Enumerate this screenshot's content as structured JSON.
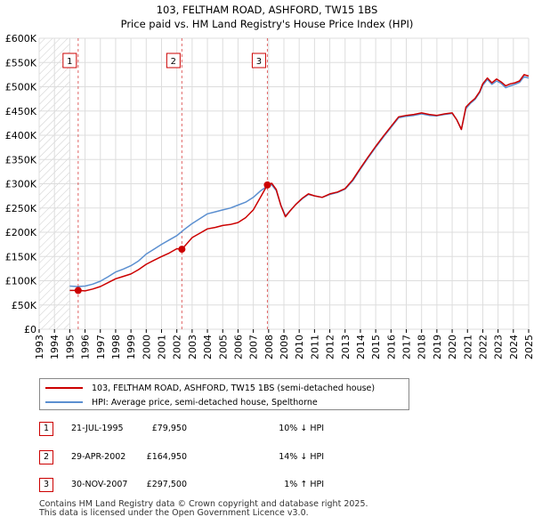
{
  "chart_data": {
    "type": "line",
    "title": "103, FELTHAM ROAD, ASHFORD, TW15 1BS",
    "subtitle": "Price paid vs. HM Land Registry's House Price Index (HPI)",
    "xlabel": "",
    "ylabel": "",
    "xlim": [
      1993,
      2025
    ],
    "ylim": [
      0,
      600000
    ],
    "x_ticks": [
      "1993",
      "1994",
      "1995",
      "1996",
      "1997",
      "1998",
      "1999",
      "2000",
      "2001",
      "2002",
      "2003",
      "2004",
      "2005",
      "2006",
      "2007",
      "2008",
      "2009",
      "2010",
      "2011",
      "2012",
      "2013",
      "2014",
      "2015",
      "2016",
      "2017",
      "2018",
      "2019",
      "2020",
      "2021",
      "2022",
      "2023",
      "2024",
      "2025"
    ],
    "y_ticks": [
      {
        "value": 0,
        "label": "£0"
      },
      {
        "value": 50000,
        "label": "£50K"
      },
      {
        "value": 100000,
        "label": "£100K"
      },
      {
        "value": 150000,
        "label": "£150K"
      },
      {
        "value": 200000,
        "label": "£200K"
      },
      {
        "value": 250000,
        "label": "£250K"
      },
      {
        "value": 300000,
        "label": "£300K"
      },
      {
        "value": 350000,
        "label": "£350K"
      },
      {
        "value": 400000,
        "label": "£400K"
      },
      {
        "value": 450000,
        "label": "£450K"
      },
      {
        "value": 500000,
        "label": "£500K"
      },
      {
        "value": 550000,
        "label": "£550K"
      },
      {
        "value": 600000,
        "label": "£600K"
      }
    ],
    "hatched_until": 1995.0,
    "series": [
      {
        "name": "103, FELTHAM ROAD, ASHFORD, TW15 1BS (semi-detached house)",
        "color": "#cc0000",
        "x": [
          1995.0,
          1995.55,
          1996.0,
          1996.5,
          1997.0,
          1997.5,
          1998.0,
          1998.5,
          1999.0,
          1999.5,
          2000.0,
          2000.5,
          2001.0,
          2001.5,
          2002.0,
          2002.33,
          2002.7,
          2003.0,
          2003.5,
          2004.0,
          2004.5,
          2005.0,
          2005.5,
          2006.0,
          2006.5,
          2007.0,
          2007.5,
          2007.92,
          2008.2,
          2008.5,
          2008.8,
          2009.1,
          2009.4,
          2009.8,
          2010.2,
          2010.6,
          2011.0,
          2011.5,
          2012.0,
          2012.5,
          2013.0,
          2013.5,
          2014.0,
          2014.5,
          2015.0,
          2015.5,
          2016.0,
          2016.5,
          2017.0,
          2017.5,
          2018.0,
          2018.5,
          2019.0,
          2019.5,
          2020.0,
          2020.3,
          2020.6,
          2020.9,
          2021.2,
          2021.5,
          2021.8,
          2022.0,
          2022.3,
          2022.6,
          2022.9,
          2023.2,
          2023.5,
          2023.8,
          2024.1,
          2024.4,
          2024.7,
          2025.0
        ],
        "values": [
          80000,
          79950,
          79000,
          83000,
          88000,
          96000,
          104000,
          109000,
          114000,
          123000,
          134000,
          142000,
          150000,
          157000,
          166000,
          164950,
          178000,
          189000,
          198000,
          207000,
          210000,
          214000,
          216000,
          220000,
          230000,
          246000,
          274000,
          297500,
          301000,
          288000,
          255000,
          232000,
          244000,
          258000,
          270000,
          279000,
          275000,
          272000,
          279000,
          283000,
          290000,
          308000,
          332000,
          355000,
          377000,
          398000,
          418000,
          438000,
          441000,
          443000,
          446000,
          443000,
          441000,
          444000,
          446000,
          432000,
          412000,
          458000,
          468000,
          476000,
          490000,
          506000,
          518000,
          508000,
          516000,
          510000,
          502000,
          506000,
          508000,
          512000,
          525000,
          522000
        ]
      },
      {
        "name": "HPI: Average price, semi-detached house, Spelthorne",
        "color": "#5b8fd0",
        "x": [
          1995.0,
          1995.5,
          1996.0,
          1996.5,
          1997.0,
          1997.5,
          1998.0,
          1998.5,
          1999.0,
          1999.5,
          2000.0,
          2000.5,
          2001.0,
          2001.5,
          2002.0,
          2002.5,
          2003.0,
          2003.5,
          2004.0,
          2004.5,
          2005.0,
          2005.5,
          2006.0,
          2006.5,
          2007.0,
          2007.5,
          2007.92,
          2008.2,
          2008.5,
          2008.8,
          2009.1,
          2009.4,
          2009.8,
          2010.2,
          2010.6,
          2011.0,
          2011.5,
          2012.0,
          2012.5,
          2013.0,
          2013.5,
          2014.0,
          2014.5,
          2015.0,
          2015.5,
          2016.0,
          2016.5,
          2017.0,
          2017.5,
          2018.0,
          2018.5,
          2019.0,
          2019.5,
          2020.0,
          2020.3,
          2020.6,
          2020.9,
          2021.2,
          2021.5,
          2021.8,
          2022.0,
          2022.3,
          2022.6,
          2022.9,
          2023.2,
          2023.5,
          2023.8,
          2024.1,
          2024.4,
          2024.7,
          2025.0
        ],
        "values": [
          89000,
          88000,
          89000,
          93000,
          99000,
          108000,
          118000,
          124000,
          131000,
          141000,
          155000,
          165000,
          175000,
          184000,
          193000,
          206000,
          218000,
          228000,
          238000,
          242000,
          246000,
          250000,
          256000,
          262000,
          272000,
          286000,
          295000,
          298000,
          286000,
          256000,
          234000,
          244000,
          258000,
          269000,
          278000,
          275000,
          272000,
          278000,
          282000,
          289000,
          306000,
          330000,
          353000,
          375000,
          396000,
          416000,
          436000,
          439000,
          441000,
          444000,
          441000,
          440000,
          443000,
          445000,
          432000,
          412000,
          455000,
          466000,
          474000,
          488000,
          503000,
          515000,
          505000,
          512000,
          507000,
          498000,
          502000,
          505000,
          509000,
          521000,
          518000
        ]
      }
    ],
    "transactions": [
      {
        "id": "1",
        "date": "21-JUL-1995",
        "year": 1995.55,
        "price": "£79,950",
        "value": 79950,
        "hpi": "10% ↓ HPI"
      },
      {
        "id": "2",
        "date": "29-APR-2002",
        "year": 2002.33,
        "price": "£164,950",
        "value": 164950,
        "hpi": "14% ↓ HPI"
      },
      {
        "id": "3",
        "date": "30-NOV-2007",
        "year": 2007.92,
        "price": "£297,500",
        "value": 297500,
        "hpi": "1% ↑ HPI"
      }
    ],
    "marker_color": "#cc0000",
    "grid_color": "#dddddd"
  },
  "legend": {
    "property_label": "103, FELTHAM ROAD, ASHFORD, TW15 1BS (semi-detached house)",
    "hpi_label": "HPI: Average price, semi-detached house, Spelthorne"
  },
  "footer": {
    "line1": "Contains HM Land Registry data © Crown copyright and database right 2025.",
    "line2": "This data is licensed under the Open Government Licence v3.0."
  }
}
